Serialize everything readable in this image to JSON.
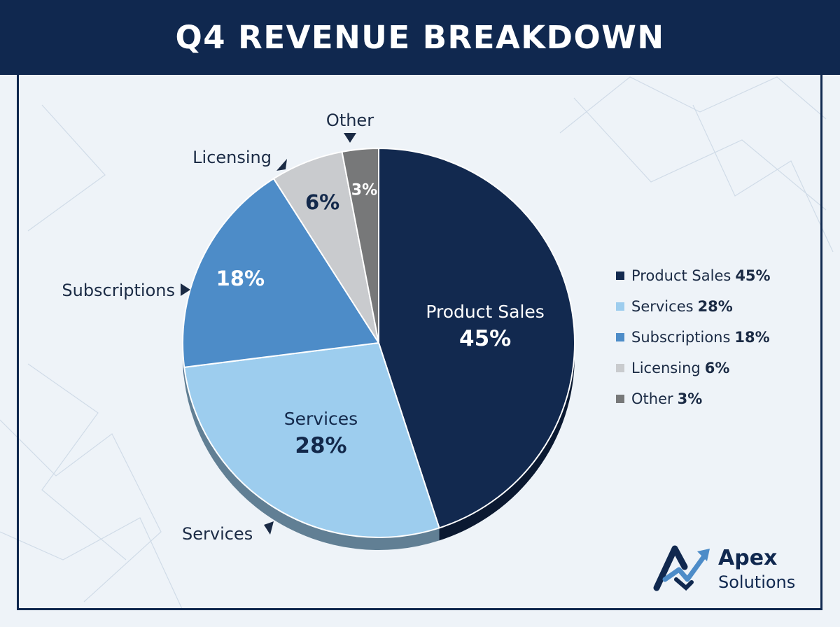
{
  "header": {
    "title": "Q4 REVENUE BREAKDOWN"
  },
  "chart_data": {
    "type": "pie",
    "title": "Q4 REVENUE BREAKDOWN",
    "unit": "%",
    "slices": [
      {
        "label": "Product Sales",
        "value": 45,
        "color": "#12294f",
        "text_color": "#ffffff"
      },
      {
        "label": "Services",
        "value": 28,
        "color": "#9dcdee",
        "text_color": "#13294b"
      },
      {
        "label": "Subscriptions",
        "value": 18,
        "color": "#4d8cc8",
        "text_color": "#ffffff"
      },
      {
        "label": "Licensing",
        "value": 6,
        "color": "#c9cbce",
        "text_color": "#13294b"
      },
      {
        "label": "Other",
        "value": 3,
        "color": "#777879",
        "text_color": "#ffffff"
      }
    ],
    "callouts": [
      "Other",
      "Licensing",
      "Subscriptions",
      "Services"
    ],
    "legend_position": "right"
  },
  "legend": {
    "items": [
      {
        "label": "Product Sales",
        "value": "45%",
        "color": "#12294f"
      },
      {
        "label": "Services",
        "value": "28%",
        "color": "#9dcdee"
      },
      {
        "label": "Subscriptions",
        "value": "18%",
        "color": "#4d8cc8"
      },
      {
        "label": "Licensing",
        "value": "6%",
        "color": "#c9cbce"
      },
      {
        "label": "Other",
        "value": "3%",
        "color": "#777879"
      }
    ]
  },
  "brand": {
    "name": "Apex",
    "tagline": "Solutions",
    "logo_icon": "apex-arrow-icon"
  }
}
